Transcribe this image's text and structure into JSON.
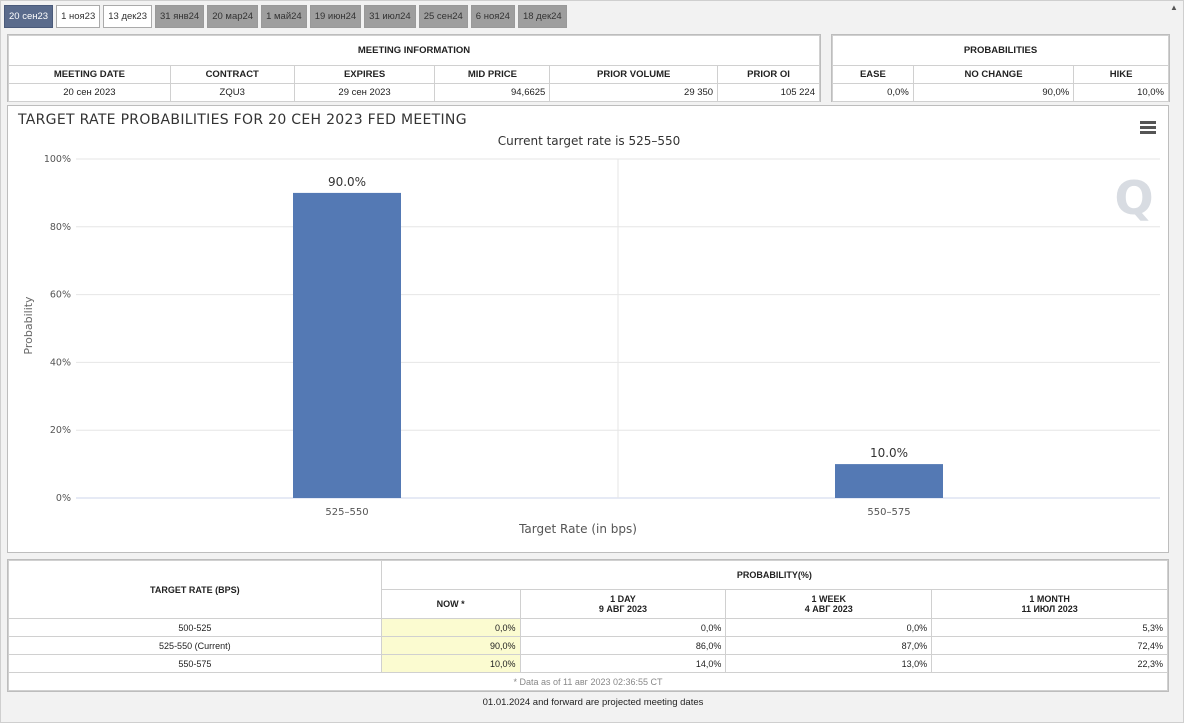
{
  "tabs": [
    "20 сен23",
    "1 ноя23",
    "13 дек23",
    "31 янв24",
    "20 мар24",
    "1 май24",
    "19 июн24",
    "31 июл24",
    "25 сен24",
    "6 ноя24",
    "18 дек24"
  ],
  "meeting_info": {
    "caption": "MEETING INFORMATION",
    "headers": [
      "MEETING DATE",
      "CONTRACT",
      "EXPIRES",
      "MID PRICE",
      "PRIOR VOLUME",
      "PRIOR OI"
    ],
    "row": [
      "20 сен 2023",
      "ZQU3",
      "29 сен 2023",
      "94,6625",
      "29 350",
      "105 224"
    ]
  },
  "probabilities": {
    "caption": "PROBABILITIES",
    "headers": [
      "EASE",
      "NO CHANGE",
      "HIKE"
    ],
    "row": [
      "0,0%",
      "90,0%",
      "10,0%"
    ]
  },
  "chart_data": {
    "type": "bar",
    "title": "TARGET RATE PROBABILITIES FOR 20 СЕН 2023 FED MEETING",
    "subtitle": "Current target rate is 525–550",
    "xlabel": "Target Rate (in bps)",
    "ylabel": "Probability",
    "categories": [
      "525–550",
      "550–575"
    ],
    "values": [
      90.0,
      10.0
    ],
    "data_labels": [
      "90.0%",
      "10.0%"
    ],
    "ylim": [
      0,
      100
    ],
    "yticks": [
      "0%",
      "20%",
      "40%",
      "60%",
      "80%",
      "100%"
    ],
    "bar_color": "#5479b4",
    "grid": true,
    "watermark": "Q"
  },
  "bottom_table": {
    "target_rate_header": "TARGET RATE (BPS)",
    "probability_header": "PROBABILITY(%)",
    "columns": [
      {
        "line1": "NOW *",
        "line2": ""
      },
      {
        "line1": "1 DAY",
        "line2": "9 АВГ 2023"
      },
      {
        "line1": "1 WEEK",
        "line2": "4 АВГ 2023"
      },
      {
        "line1": "1 MONTH",
        "line2": "11 ИЮЛ 2023"
      }
    ],
    "rows": [
      {
        "rate": "500-525",
        "values": [
          "0,0%",
          "0,0%",
          "0,0%",
          "5,3%"
        ]
      },
      {
        "rate": "525-550 (Current)",
        "values": [
          "90,0%",
          "86,0%",
          "87,0%",
          "72,4%"
        ]
      },
      {
        "rate": "550-575",
        "values": [
          "10,0%",
          "14,0%",
          "13,0%",
          "22,3%"
        ]
      }
    ],
    "footnote": "* Data as of 11 авг 2023 02:36:55 CT"
  },
  "projected_note": "01.01.2024 and forward are projected meeting dates"
}
